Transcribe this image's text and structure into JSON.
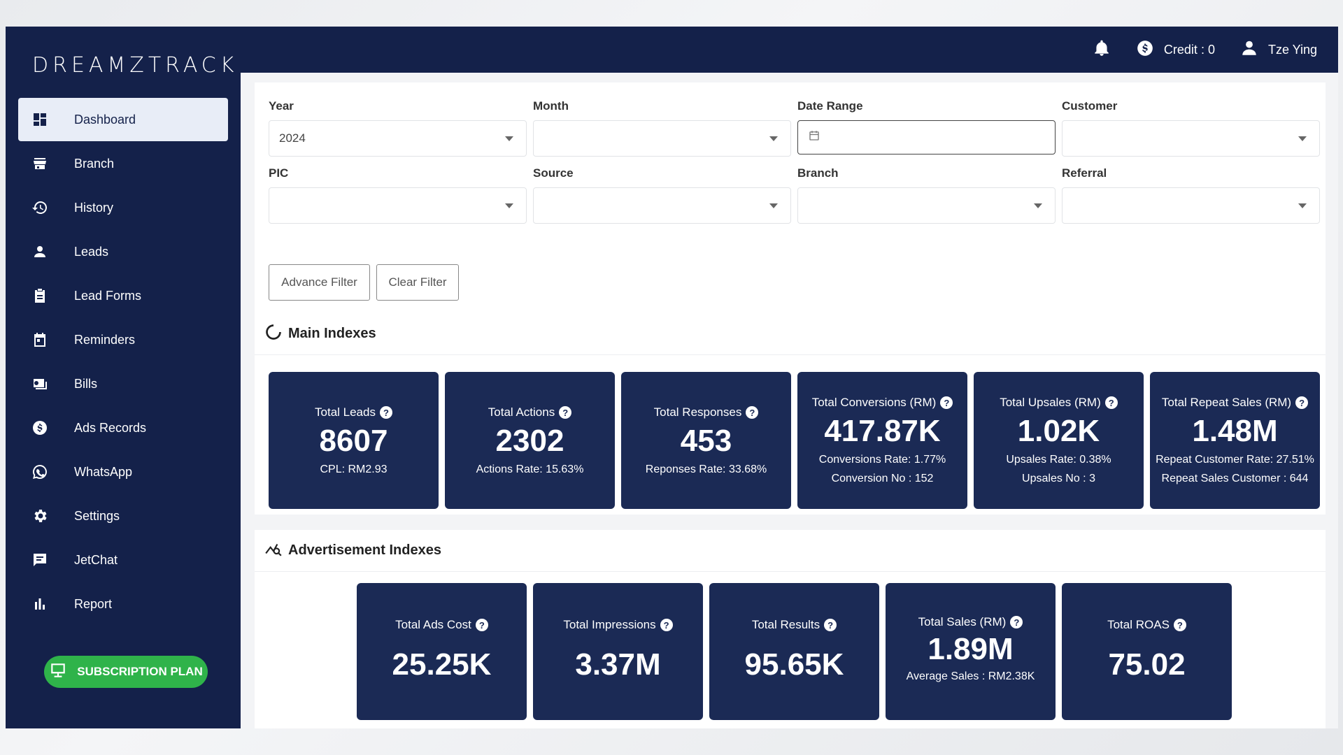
{
  "brand": {
    "logo_text": "DREAMZTRACK"
  },
  "sidebar": {
    "items": [
      {
        "label": "Dashboard",
        "icon": "dashboard-icon",
        "active": true
      },
      {
        "label": "Branch",
        "icon": "store-icon"
      },
      {
        "label": "History",
        "icon": "history-icon"
      },
      {
        "label": "Leads",
        "icon": "person-icon"
      },
      {
        "label": "Lead Forms",
        "icon": "clipboard-icon"
      },
      {
        "label": "Reminders",
        "icon": "calendar-icon"
      },
      {
        "label": "Bills",
        "icon": "bill-icon"
      },
      {
        "label": "Ads Records",
        "icon": "dollar-icon"
      },
      {
        "label": "WhatsApp",
        "icon": "whatsapp-icon"
      },
      {
        "label": "Settings",
        "icon": "gear-icon"
      },
      {
        "label": "JetChat",
        "icon": "chat-icon"
      },
      {
        "label": "Report",
        "icon": "bar-chart-icon"
      }
    ],
    "subscription_label": "SUBSCRIPTION PLAN"
  },
  "topbar": {
    "credit": "Credit : 0",
    "user": "Tze Ying"
  },
  "filters": {
    "year_label": "Year",
    "year_value": "2024",
    "month_label": "Month",
    "date_range_label": "Date Range",
    "customer_label": "Customer",
    "pic_label": "PIC",
    "source_label": "Source",
    "branch_label": "Branch",
    "referral_label": "Referral",
    "advance_filter": "Advance Filter",
    "clear_filter": "Clear Filter"
  },
  "main_indexes": {
    "title": "Main Indexes",
    "cards": [
      {
        "title": "Total Leads",
        "value": "8607",
        "sub1": "CPL: RM2.93",
        "sub2": ""
      },
      {
        "title": "Total Actions",
        "value": "2302",
        "sub1": "Actions Rate: 15.63%",
        "sub2": ""
      },
      {
        "title": "Total Responses",
        "value": "453",
        "sub1": "Reponses Rate: 33.68%",
        "sub2": ""
      },
      {
        "title": "Total Conversions (RM)",
        "value": "417.87K",
        "sub1": "Conversions Rate: 1.77%",
        "sub2": "Conversion No : 152"
      },
      {
        "title": "Total Upsales (RM)",
        "value": "1.02K",
        "sub1": "Upsales Rate: 0.38%",
        "sub2": "Upsales No : 3"
      },
      {
        "title": "Total Repeat Sales (RM)",
        "value": "1.48M",
        "sub1": "Repeat Customer Rate: 27.51%",
        "sub2": "Repeat Sales Customer : 644"
      }
    ]
  },
  "ad_indexes": {
    "title": "Advertisement Indexes",
    "cards": [
      {
        "title": "Total Ads Cost",
        "value": "25.25K",
        "sub1": ""
      },
      {
        "title": "Total Impressions",
        "value": "3.37M",
        "sub1": ""
      },
      {
        "title": "Total Results",
        "value": "95.65K",
        "sub1": ""
      },
      {
        "title": "Total Sales (RM)",
        "value": "1.89M",
        "sub1": "Average Sales : RM2.38K"
      },
      {
        "title": "Total ROAS",
        "value": "75.02",
        "sub1": ""
      }
    ]
  },
  "colors": {
    "sidebar": "#14214a",
    "card": "#1b2a55",
    "subscription": "#2fb34a"
  }
}
